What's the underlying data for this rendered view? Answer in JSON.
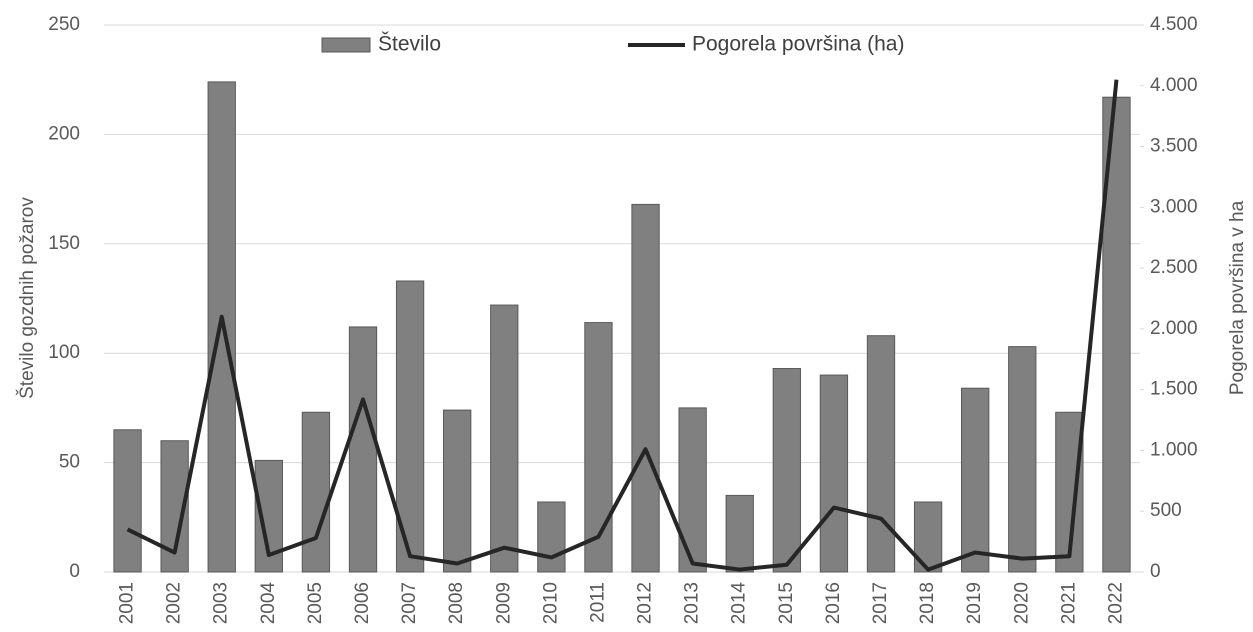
{
  "chart_data": {
    "type": "bar",
    "categories": [
      "2001",
      "2002",
      "2003",
      "2004",
      "2005",
      "2006",
      "2007",
      "2008",
      "2009",
      "2010",
      "2011",
      "2012",
      "2013",
      "2014",
      "2015",
      "2016",
      "2017",
      "2018",
      "2019",
      "2020",
      "2021",
      "2022"
    ],
    "series": [
      {
        "name": "Število",
        "type": "bar",
        "color": "#808080",
        "values": [
          65,
          60,
          224,
          51,
          73,
          112,
          133,
          74,
          122,
          32,
          114,
          168,
          75,
          35,
          93,
          90,
          108,
          32,
          84,
          103,
          73,
          217
        ]
      },
      {
        "name": "Pogorela površina (ha)",
        "type": "line",
        "axis": "y2",
        "color": "#262626",
        "values": [
          350,
          160,
          2100,
          140,
          280,
          1420,
          130,
          70,
          200,
          120,
          290,
          1010,
          70,
          20,
          60,
          530,
          440,
          20,
          160,
          110,
          130,
          4050
        ]
      }
    ],
    "ylabel": "Število gozdnih požarov",
    "y2label": "Pogorela površina v ha",
    "ylim": [
      0,
      250
    ],
    "yticks": [
      0,
      50,
      100,
      150,
      200,
      250
    ],
    "y2lim": [
      0,
      4500
    ],
    "y2ticks": [
      0,
      500,
      {
        "value": 1000,
        "label": "1.000"
      },
      {
        "value": 1500,
        "label": "1.500"
      },
      {
        "value": 2000,
        "label": "2.000"
      },
      {
        "value": 2500,
        "label": "2.500"
      },
      {
        "value": 3000,
        "label": "3.000"
      },
      {
        "value": 3500,
        "label": "3.500"
      },
      {
        "value": 4000,
        "label": "4.000"
      },
      {
        "value": 4500,
        "label": "4.500"
      }
    ],
    "grid": true,
    "legend": "top"
  }
}
